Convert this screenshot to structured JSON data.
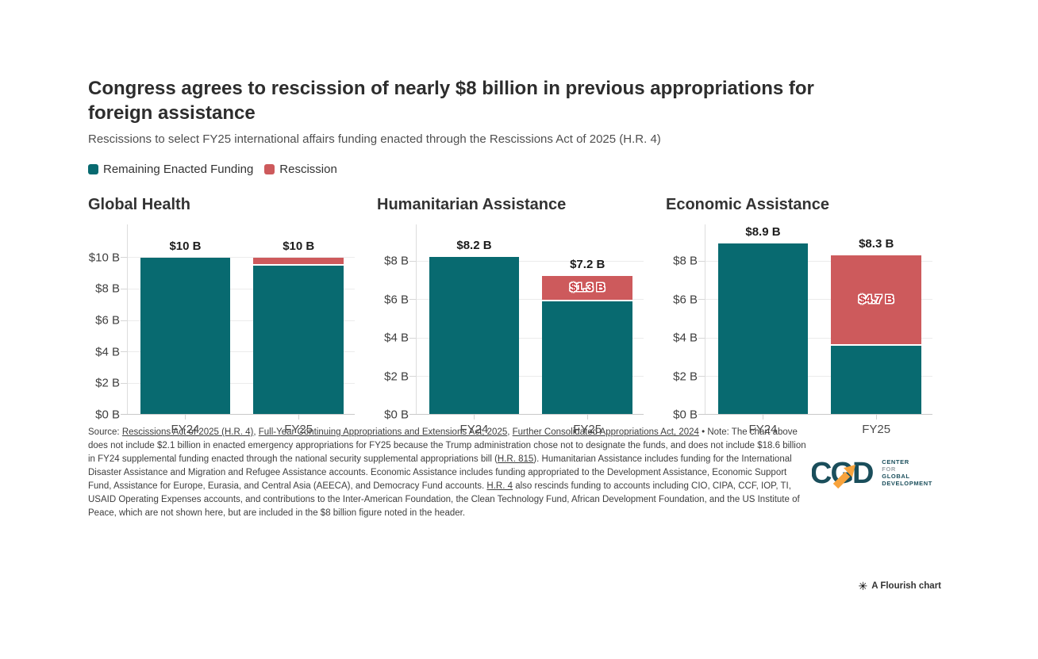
{
  "header": {
    "title": "Congress agrees to rescission of nearly $8 billion in previous appropriations for foreign assistance",
    "subtitle": "Rescissions to select FY25 international affairs funding enacted through the Rescissions Act of 2025 (H.R. 4)"
  },
  "colors": {
    "remaining": "#086a70",
    "rescission": "#cd5a5c",
    "rescission_label": "#c5343a",
    "gridline": "#ececec",
    "axis": "#c9c9c9"
  },
  "legend": {
    "items": [
      {
        "label": "Remaining Enacted Funding",
        "key": "remaining",
        "color": "#086a70"
      },
      {
        "label": "Rescission",
        "key": "rescission",
        "color": "#cd5a5c"
      }
    ]
  },
  "chart_data": [
    {
      "type": "bar",
      "stacked": true,
      "title": "Global Health",
      "categories": [
        "FY24",
        "FY25"
      ],
      "series": [
        {
          "name": "Remaining Enacted Funding",
          "values": [
            10.0,
            9.5
          ]
        },
        {
          "name": "Rescission",
          "values": [
            0,
            0.5
          ]
        }
      ],
      "total_labels": [
        "$10 B",
        "$10 B"
      ],
      "rescission_labels": [
        "",
        ""
      ],
      "yticks": [
        0,
        2,
        4,
        6,
        8,
        10
      ],
      "ytick_labels": [
        "$0 B",
        "$2 B",
        "$4 B",
        "$6 B",
        "$8 B",
        "$10 B"
      ],
      "ymax": 12.1,
      "ylim": [
        0,
        12.1
      ],
      "grid": true,
      "legend_position": "top"
    },
    {
      "type": "bar",
      "stacked": true,
      "title": "Humanitarian Assistance",
      "categories": [
        "FY24",
        "FY25"
      ],
      "series": [
        {
          "name": "Remaining Enacted Funding",
          "values": [
            8.2,
            5.9
          ]
        },
        {
          "name": "Rescission",
          "values": [
            0,
            1.3
          ]
        }
      ],
      "total_labels": [
        "$8.2 B",
        "$7.2 B"
      ],
      "rescission_labels": [
        "",
        "$1.3 B"
      ],
      "yticks": [
        0,
        2,
        4,
        6,
        8
      ],
      "ytick_labels": [
        "$0 B",
        "$2 B",
        "$4 B",
        "$6 B",
        "$8 B"
      ],
      "ymax": 9.9,
      "ylim": [
        0,
        9.9
      ],
      "grid": true,
      "legend_position": "top"
    },
    {
      "type": "bar",
      "stacked": true,
      "title": "Economic Assistance",
      "categories": [
        "FY24",
        "FY25"
      ],
      "series": [
        {
          "name": "Remaining Enacted Funding",
          "values": [
            8.9,
            3.6
          ]
        },
        {
          "name": "Rescission",
          "values": [
            0,
            4.7
          ]
        }
      ],
      "total_labels": [
        "$8.9 B",
        "$8.3 B"
      ],
      "rescission_labels": [
        "",
        "$4.7 B"
      ],
      "yticks": [
        0,
        2,
        4,
        6,
        8
      ],
      "ytick_labels": [
        "$0 B",
        "$2 B",
        "$4 B",
        "$6 B",
        "$8 B"
      ],
      "ymax": 9.9,
      "ylim": [
        0,
        9.9
      ],
      "grid": true,
      "legend_position": "top"
    }
  ],
  "footnote": {
    "segments": [
      {
        "text": "Source: ",
        "link": false
      },
      {
        "text": "Rescissions Act of 2025 (H.R. 4)",
        "link": true
      },
      {
        "text": ", ",
        "link": false
      },
      {
        "text": "Full-Year Continuing Appropriations and Extensions Act, 2025",
        "link": true
      },
      {
        "text": ", ",
        "link": false
      },
      {
        "text": "Further Consolidated Appropriations Act, 2024",
        "link": true
      },
      {
        "text": " • Note: The chart above does not include $2.1 billion in enacted emergency appropriations for FY25 because the Trump administration chose not to designate the funds, and does not include $18.6 billion in FY24 supplemental funding enacted through the national security supplemental appropriations bill (",
        "link": false
      },
      {
        "text": "H.R. 815",
        "link": true
      },
      {
        "text": "). Humanitarian Assistance includes funding for the International Disaster Assistance and Migration and Refugee Assistance accounts. Economic Assistance includes funding appropriated to the Development Assistance, Economic Support Fund, Assistance for Europe, Eurasia, and Central Asia (AEECA), and Democracy Fund accounts. ",
        "link": false
      },
      {
        "text": "H.R. 4",
        "link": true
      },
      {
        "text": " also rescinds funding to accounts including CIO, CIPA, CCF, IOP, TI, USAID Operating Expenses accounts, and contributions to the Inter-American Foundation, the Clean Technology Fund, African Development Foundation, and the US Institute of Peace, which are not shown here, but are included in the $8 billion figure noted in the header.",
        "link": false
      }
    ]
  },
  "logo": {
    "monogram": "CGD",
    "lines": [
      "CENTER",
      "FOR",
      "GLOBAL",
      "DEVELOPMENT"
    ],
    "teal": "#1a4e5b",
    "orange": "#f8a33c",
    "gray": "#9aa3a8"
  },
  "attribution": {
    "icon": "✳",
    "label": "A Flourish chart"
  }
}
